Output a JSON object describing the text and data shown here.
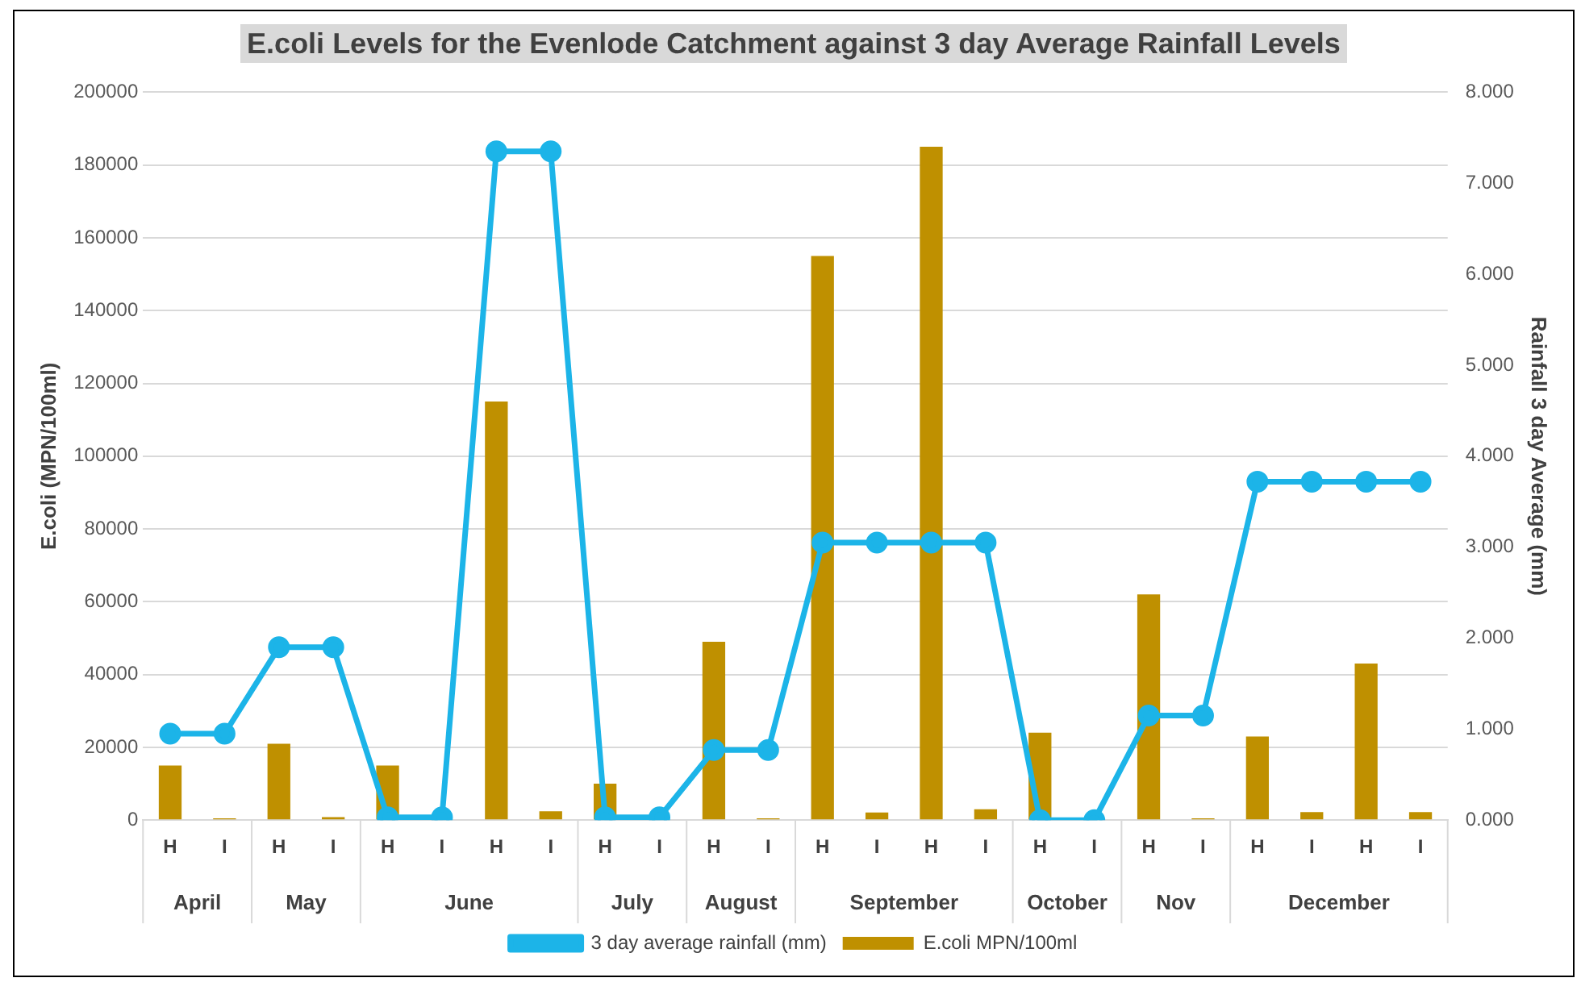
{
  "chart_data": {
    "type": "bar",
    "title": "E.coli Levels for the Evenlode Catchment against 3 day Average Rainfall Levels",
    "categories": [
      "H",
      "I",
      "H",
      "I",
      "H",
      "I",
      "H",
      "I",
      "H",
      "I",
      "H",
      "I",
      "H",
      "I",
      "H",
      "I",
      "H",
      "I",
      "H",
      "I",
      "H",
      "I",
      "H",
      "I"
    ],
    "annotations": [
      "April",
      "May",
      "June",
      "July",
      "August",
      "September",
      "October",
      "Nov",
      "December"
    ],
    "ylabel": "E.coli (MPN/100ml)",
    "y2label": "Rainfall 3 day Average (mm)",
    "series": [
      {
        "name": "E.coli MPN/100ml",
        "color": "#bf9000",
        "values": [
          15000,
          500,
          21000,
          800,
          15000,
          0,
          115000,
          2400,
          10000,
          0,
          49000,
          500,
          155000,
          2100,
          185000,
          3000,
          24000,
          0,
          62000,
          500,
          23000,
          2200,
          43000,
          2200
        ]
      },
      {
        "name": "3 day average rainfall (mm)",
        "type": "line",
        "axis": "y2",
        "color": "#1cb4e8",
        "values": [
          0.95,
          0.95,
          1.9,
          1.9,
          0.03,
          0.03,
          7.35,
          7.35,
          0.03,
          0.03,
          0.77,
          0.77,
          3.05,
          3.05,
          3.05,
          3.05,
          0,
          0,
          1.15,
          1.15,
          3.72,
          3.72,
          3.72,
          3.72
        ]
      }
    ],
    "ylim": [
      0,
      200000
    ],
    "yticks": [
      0,
      20000,
      40000,
      60000,
      80000,
      100000,
      120000,
      140000,
      160000,
      180000,
      200000
    ],
    "y2lim": [
      0,
      8
    ],
    "y2ticks": [
      {
        "value": 0,
        "label": "0.000"
      },
      {
        "value": 1,
        "label": "1.000"
      },
      {
        "value": 2,
        "label": "2.000"
      },
      {
        "value": 3,
        "label": "3.000"
      },
      {
        "value": 4,
        "label": "4.000"
      },
      {
        "value": 5,
        "label": "5.000"
      },
      {
        "value": 6,
        "label": "6.000"
      },
      {
        "value": 7,
        "label": "7.000"
      },
      {
        "value": 8,
        "label": "8.000"
      }
    ],
    "grid": "y",
    "legend": "bottom",
    "marker": "circle",
    "line_style": "solid"
  }
}
